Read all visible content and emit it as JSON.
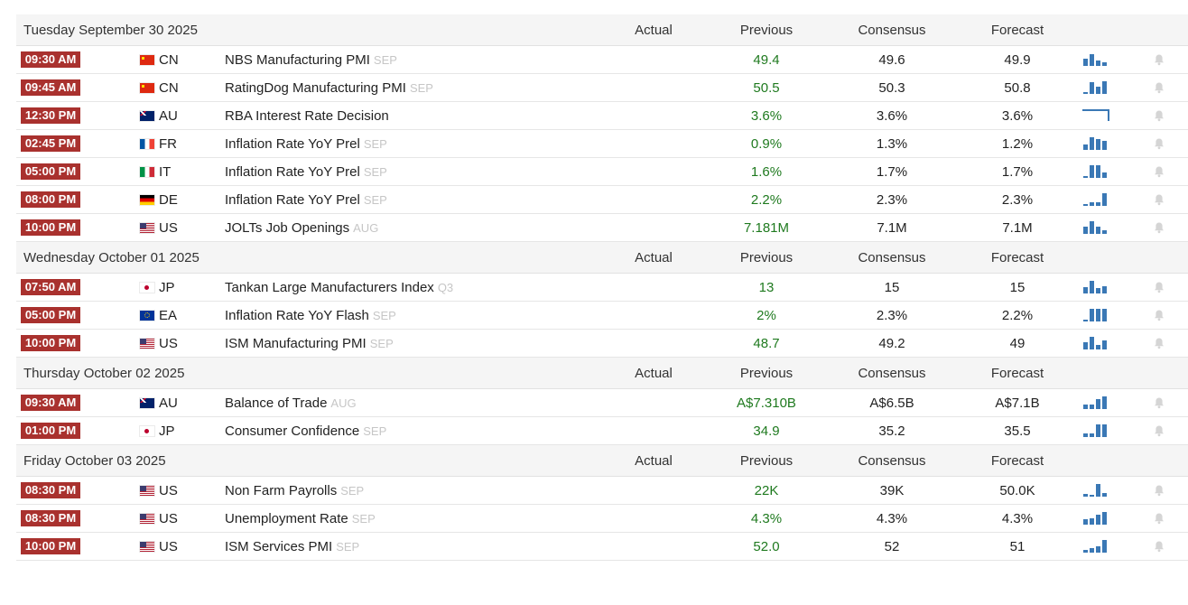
{
  "columns": {
    "actual": "Actual",
    "previous": "Previous",
    "consensus": "Consensus",
    "forecast": "Forecast"
  },
  "colors": {
    "time_badge": "#a9312e",
    "previous_value": "#1f7a1f",
    "sparkline": "#3a78b5",
    "reference": "#c6c6c6"
  },
  "days": [
    {
      "date": "Tuesday September 30 2025",
      "events": [
        {
          "time": "09:30 AM",
          "country": "CN",
          "flag": "flag-cn",
          "event": "NBS Manufacturing PMI",
          "ref": "SEP",
          "actual": "",
          "previous": "49.4",
          "consensus": "49.6",
          "forecast": "49.9",
          "spark": [
            0.55,
            0.95,
            0.4,
            0.25
          ],
          "icon": "bell-icon"
        },
        {
          "time": "09:45 AM",
          "country": "CN",
          "flag": "flag-cn",
          "event": "RatingDog Manufacturing PMI",
          "ref": "SEP",
          "actual": "",
          "previous": "50.5",
          "consensus": "50.3",
          "forecast": "50.8",
          "spark": [
            0.1,
            0.9,
            0.6,
            1.0
          ],
          "icon": "bell-icon"
        },
        {
          "time": "12:30 PM",
          "country": "AU",
          "flag": "flag-au",
          "event": "RBA Interest Rate Decision",
          "ref": "",
          "actual": "",
          "previous": "3.6%",
          "consensus": "3.6%",
          "forecast": "3.6%",
          "spark": [],
          "icon": "bell-icon"
        },
        {
          "time": "02:45 PM",
          "country": "FR",
          "flag": "flag-fr",
          "event": "Inflation Rate YoY Prel",
          "ref": "SEP",
          "actual": "",
          "previous": "0.9%",
          "consensus": "1.3%",
          "forecast": "1.2%",
          "spark": [
            0.45,
            1.0,
            0.85,
            0.7
          ],
          "icon": "bell-icon"
        },
        {
          "time": "05:00 PM",
          "country": "IT",
          "flag": "flag-it",
          "event": "Inflation Rate YoY Prel",
          "ref": "SEP",
          "actual": "",
          "previous": "1.6%",
          "consensus": "1.7%",
          "forecast": "1.7%",
          "spark": [
            0.15,
            1.0,
            1.0,
            0.45
          ],
          "icon": "bell-icon"
        },
        {
          "time": "08:00 PM",
          "country": "DE",
          "flag": "flag-de",
          "event": "Inflation Rate YoY Prel",
          "ref": "SEP",
          "actual": "",
          "previous": "2.2%",
          "consensus": "2.3%",
          "forecast": "2.3%",
          "spark": [
            0.15,
            0.3,
            0.3,
            1.0
          ],
          "icon": "bell-icon"
        },
        {
          "time": "10:00 PM",
          "country": "US",
          "flag": "flag-us",
          "event": "JOLTs Job Openings",
          "ref": "AUG",
          "actual": "",
          "previous": "7.181M",
          "consensus": "7.1M",
          "forecast": "7.1M",
          "spark": [
            0.6,
            1.0,
            0.55,
            0.3
          ],
          "icon": "bell-icon"
        }
      ]
    },
    {
      "date": "Wednesday October 01 2025",
      "events": [
        {
          "time": "07:50 AM",
          "country": "JP",
          "flag": "flag-jp",
          "event": "Tankan Large Manufacturers Index",
          "ref": "Q3",
          "actual": "",
          "previous": "13",
          "consensus": "15",
          "forecast": "15",
          "spark": [
            0.5,
            1.0,
            0.4,
            0.55
          ],
          "icon": "bell-icon"
        },
        {
          "time": "05:00 PM",
          "country": "EA",
          "flag": "flag-eu",
          "event": "Inflation Rate YoY Flash",
          "ref": "SEP",
          "actual": "",
          "previous": "2%",
          "consensus": "2.3%",
          "forecast": "2.2%",
          "spark": [
            0.1,
            1.0,
            1.0,
            1.0
          ],
          "icon": "bell-icon"
        },
        {
          "time": "10:00 PM",
          "country": "US",
          "flag": "flag-us",
          "event": "ISM Manufacturing PMI",
          "ref": "SEP",
          "actual": "",
          "previous": "48.7",
          "consensus": "49.2",
          "forecast": "49",
          "spark": [
            0.55,
            1.0,
            0.35,
            0.7
          ],
          "icon": "bell-icon"
        }
      ]
    },
    {
      "date": "Thursday October 02 2025",
      "events": [
        {
          "time": "09:30 AM",
          "country": "AU",
          "flag": "flag-au",
          "event": "Balance of Trade",
          "ref": "AUG",
          "actual": "",
          "previous": "A$7.310B",
          "consensus": "A$6.5B",
          "forecast": "A$7.1B",
          "spark": [
            0.35,
            0.35,
            0.75,
            1.0
          ],
          "icon": "bell-icon"
        },
        {
          "time": "01:00 PM",
          "country": "JP",
          "flag": "flag-jp",
          "event": "Consumer Confidence",
          "ref": "SEP",
          "actual": "",
          "previous": "34.9",
          "consensus": "35.2",
          "forecast": "35.5",
          "spark": [
            0.3,
            0.3,
            1.0,
            1.0
          ],
          "icon": "bell-icon"
        }
      ]
    },
    {
      "date": "Friday October 03 2025",
      "events": [
        {
          "time": "08:30 PM",
          "country": "US",
          "flag": "flag-us",
          "event": "Non Farm Payrolls",
          "ref": "SEP",
          "actual": "",
          "previous": "22K",
          "consensus": "39K",
          "forecast": "50.0K",
          "spark": [
            0.2,
            0.1,
            1.0,
            0.3
          ],
          "icon": "bell-icon"
        },
        {
          "time": "08:30 PM",
          "country": "US",
          "flag": "flag-us",
          "event": "Unemployment Rate",
          "ref": "SEP",
          "actual": "",
          "previous": "4.3%",
          "consensus": "4.3%",
          "forecast": "4.3%",
          "spark": [
            0.4,
            0.5,
            0.75,
            1.0
          ],
          "icon": "bell-icon"
        },
        {
          "time": "10:00 PM",
          "country": "US",
          "flag": "flag-us",
          "event": "ISM Services PMI",
          "ref": "SEP",
          "actual": "",
          "previous": "52.0",
          "consensus": "52",
          "forecast": "51",
          "spark": [
            0.2,
            0.35,
            0.5,
            1.0
          ],
          "icon": "bell-icon"
        }
      ]
    }
  ]
}
